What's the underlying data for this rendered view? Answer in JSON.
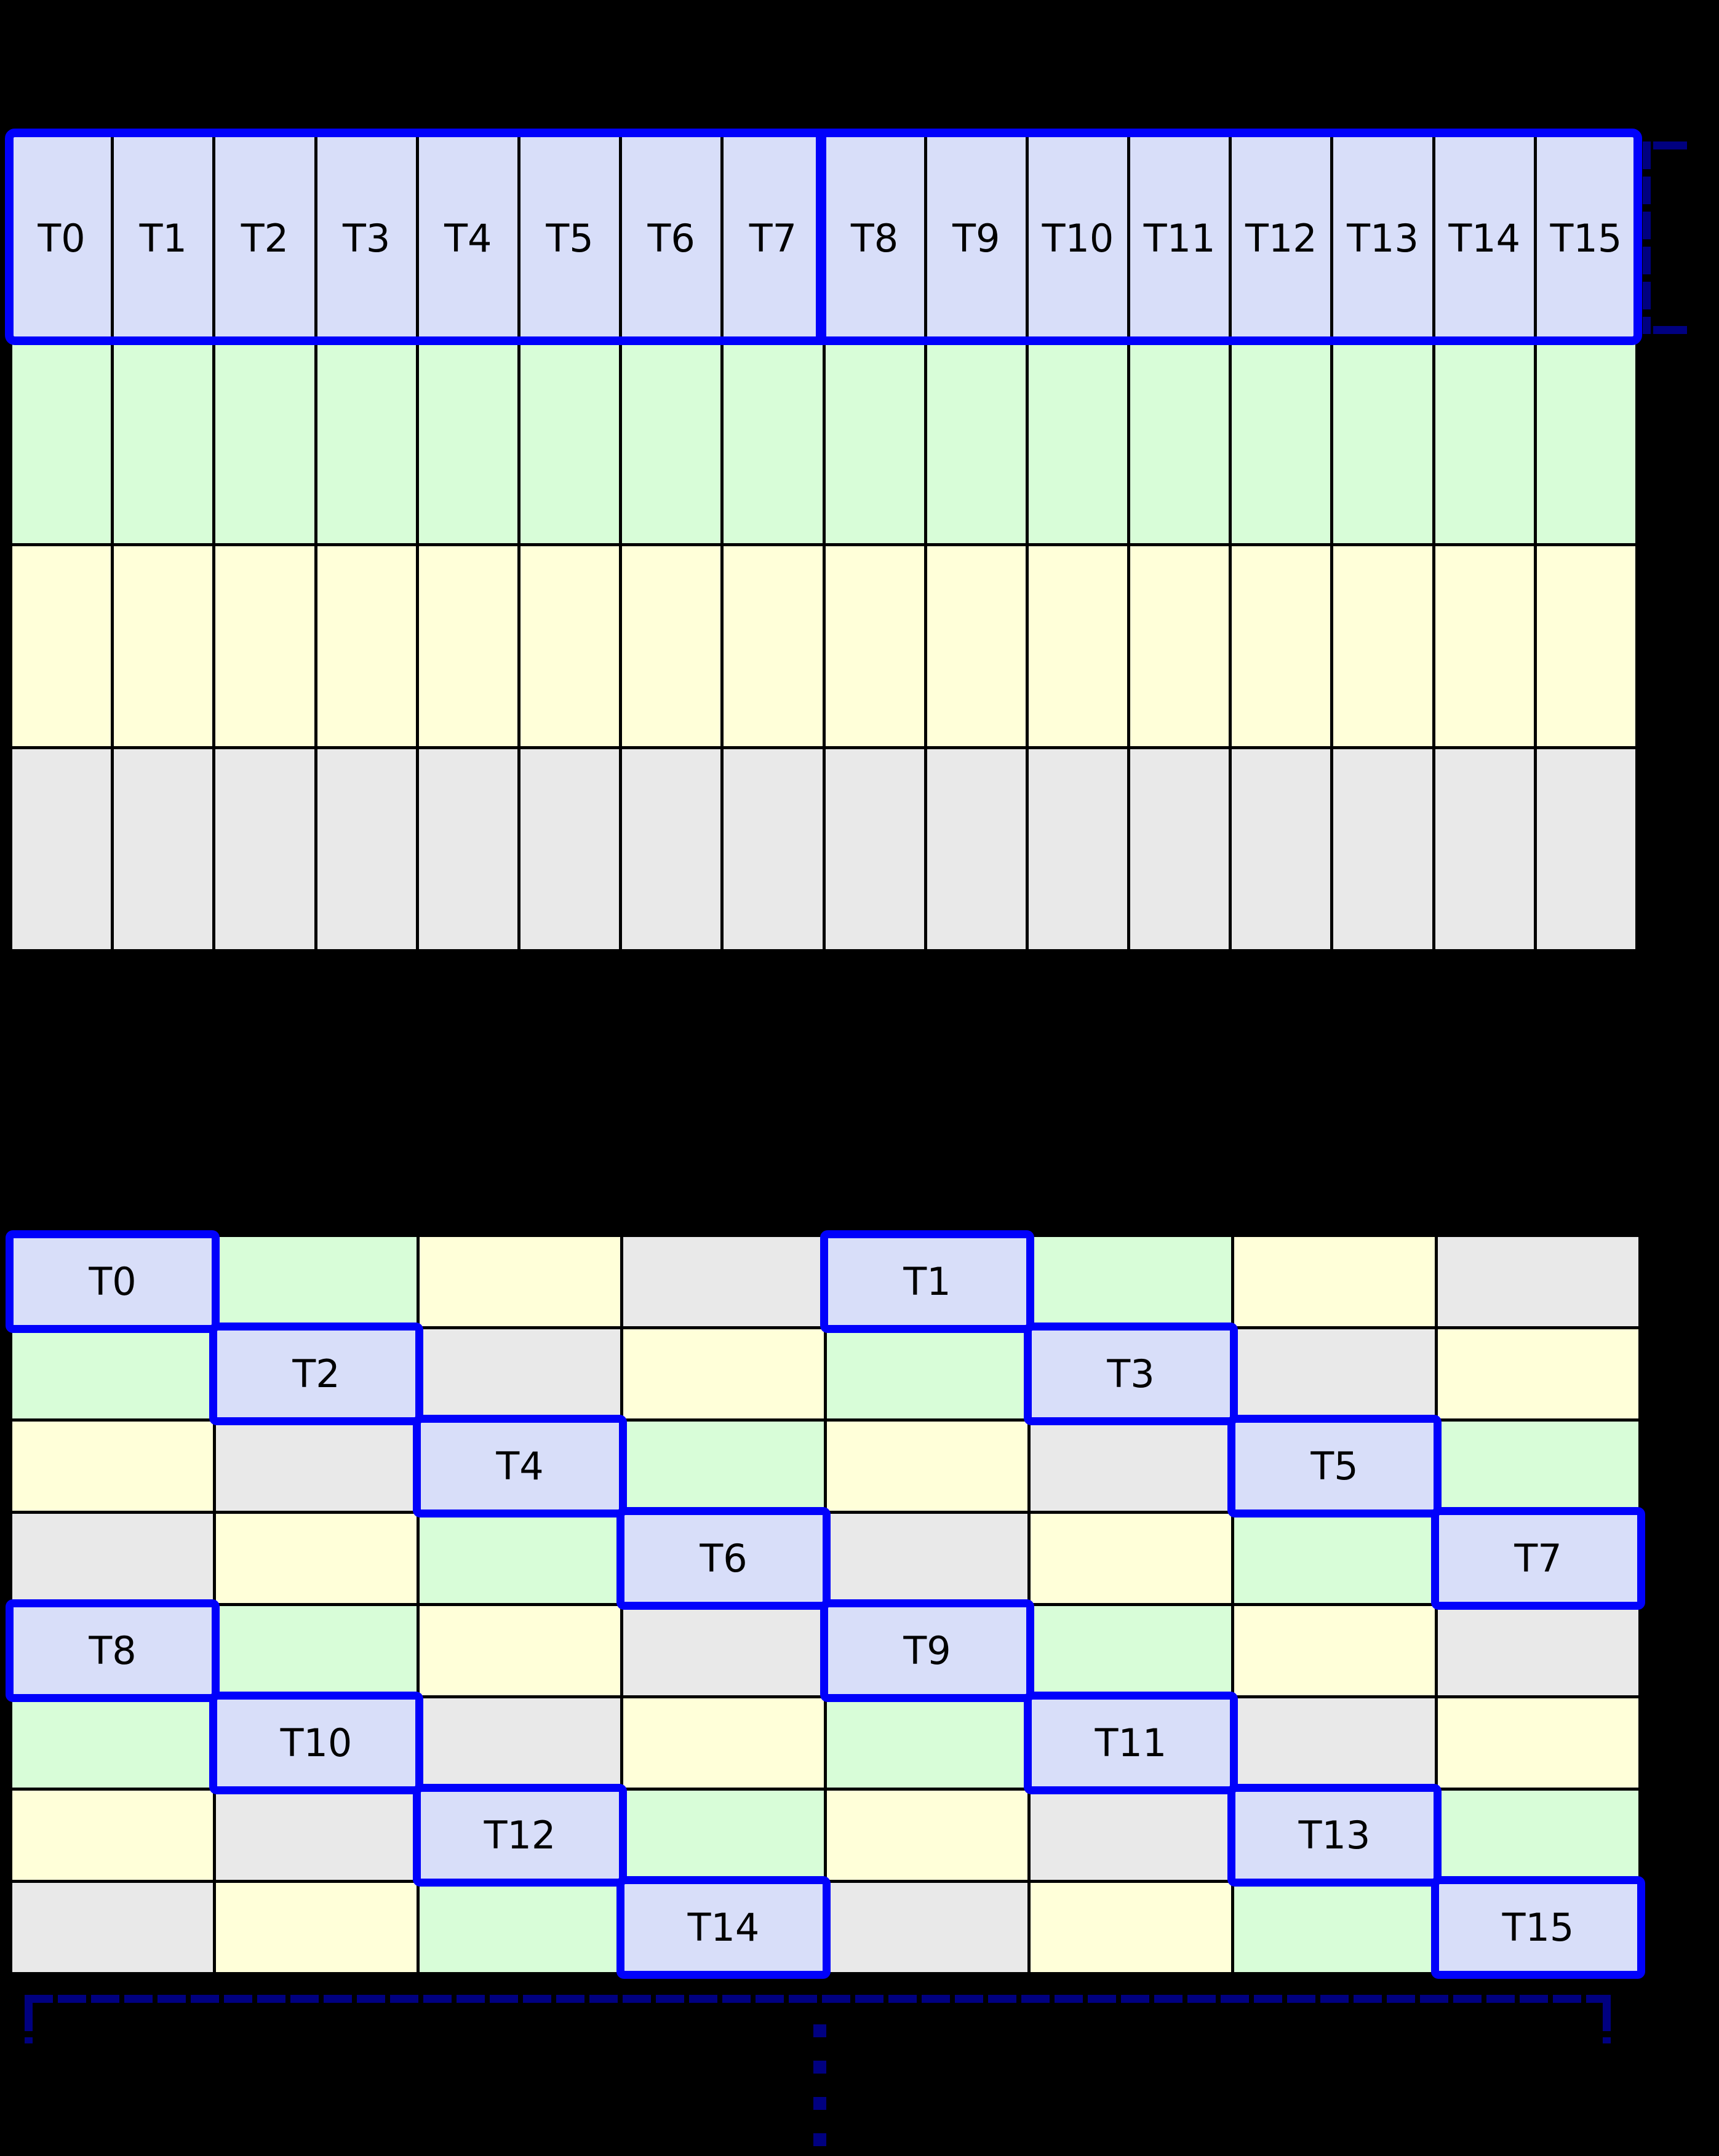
{
  "figure": {
    "background": "#000000",
    "palette": {
      "thread_blue": "#d8def9",
      "bank_green": "#d8fdd8",
      "bank_yellow": "#ffffd9",
      "bank_gray": "#e9e9e9",
      "highlight_blue": "#0101fb",
      "bracket_navy": "#000080",
      "grid_line_black": "#000000",
      "label_black": "#000000"
    }
  },
  "top_grid": {
    "columns": 16,
    "rows": 4,
    "thread_labels": [
      "T0",
      "T1",
      "T2",
      "T3",
      "T4",
      "T5",
      "T6",
      "T7",
      "T8",
      "T9",
      "T10",
      "T11",
      "T12",
      "T13",
      "T14",
      "T15"
    ],
    "row_colors": [
      "thread_blue",
      "bank_green",
      "bank_yellow",
      "bank_gray"
    ],
    "highlight_groups": [
      {
        "start": 0,
        "end": 7
      },
      {
        "start": 8,
        "end": 15
      }
    ]
  },
  "bottom_grid": {
    "columns": 8,
    "rows": [
      {
        "colors": [
          "thread_blue",
          "bank_green",
          "bank_yellow",
          "bank_gray",
          "thread_blue",
          "bank_green",
          "bank_yellow",
          "bank_gray"
        ],
        "labels": {
          "0": "T0",
          "4": "T1"
        }
      },
      {
        "colors": [
          "bank_green",
          "thread_blue",
          "bank_gray",
          "bank_yellow",
          "bank_green",
          "thread_blue",
          "bank_gray",
          "bank_yellow"
        ],
        "labels": {
          "1": "T2",
          "5": "T3"
        }
      },
      {
        "colors": [
          "bank_yellow",
          "bank_gray",
          "thread_blue",
          "bank_green",
          "bank_yellow",
          "bank_gray",
          "thread_blue",
          "bank_green"
        ],
        "labels": {
          "2": "T4",
          "6": "T5"
        }
      },
      {
        "colors": [
          "bank_gray",
          "bank_yellow",
          "bank_green",
          "thread_blue",
          "bank_gray",
          "bank_yellow",
          "bank_green",
          "thread_blue"
        ],
        "labels": {
          "3": "T6",
          "7": "T7"
        }
      },
      {
        "colors": [
          "thread_blue",
          "bank_green",
          "bank_yellow",
          "bank_gray",
          "thread_blue",
          "bank_green",
          "bank_yellow",
          "bank_gray"
        ],
        "labels": {
          "0": "T8",
          "4": "T9"
        }
      },
      {
        "colors": [
          "bank_green",
          "thread_blue",
          "bank_gray",
          "bank_yellow",
          "bank_green",
          "thread_blue",
          "bank_gray",
          "bank_yellow"
        ],
        "labels": {
          "1": "T10",
          "5": "T11"
        }
      },
      {
        "colors": [
          "bank_yellow",
          "bank_gray",
          "thread_blue",
          "bank_green",
          "bank_yellow",
          "bank_gray",
          "thread_blue",
          "bank_green"
        ],
        "labels": {
          "2": "T12",
          "6": "T13"
        }
      },
      {
        "colors": [
          "bank_gray",
          "bank_yellow",
          "bank_green",
          "thread_blue",
          "bank_gray",
          "bank_yellow",
          "bank_green",
          "thread_blue"
        ],
        "labels": {
          "3": "T14",
          "7": "T15"
        }
      }
    ]
  },
  "annotations": {
    "row1_bracket_dashed": true,
    "bottom_bracket_dashed": true,
    "continuation_dots": 4
  }
}
